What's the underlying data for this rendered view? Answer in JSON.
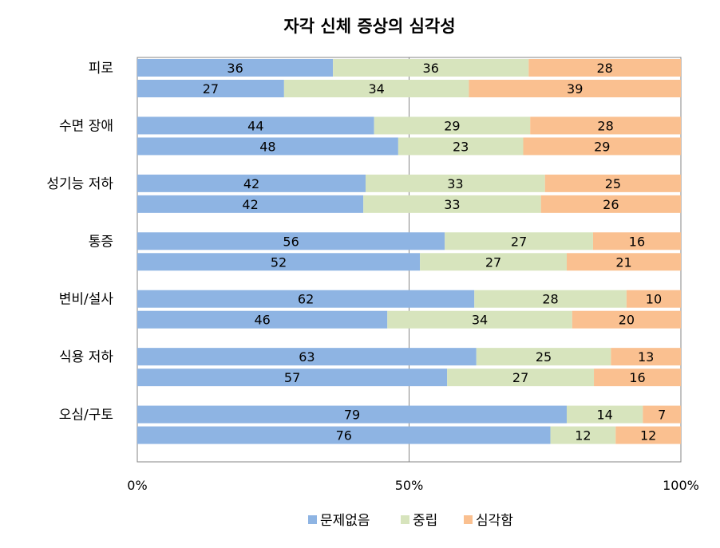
{
  "chart_data": {
    "type": "bar",
    "orientation": "horizontal",
    "stacked": "percent",
    "title": "자각 신체 증상의 심각성",
    "categories": [
      "피로",
      "수면 장애",
      "성기능 저하",
      "통증",
      "변비/설사",
      "식용 저하",
      "오심/구토"
    ],
    "bars_per_category": 2,
    "series": [
      {
        "name": "문제없음",
        "color": "#8eb4e3",
        "values": [
          [
            36,
            27
          ],
          [
            44,
            48
          ],
          [
            42,
            42
          ],
          [
            56,
            52
          ],
          [
            62,
            46
          ],
          [
            63,
            57
          ],
          [
            79,
            76
          ]
        ]
      },
      {
        "name": "중립",
        "color": "#d7e4bd",
        "values": [
          [
            36,
            34
          ],
          [
            29,
            23
          ],
          [
            33,
            33
          ],
          [
            27,
            27
          ],
          [
            28,
            34
          ],
          [
            25,
            27
          ],
          [
            14,
            12
          ]
        ]
      },
      {
        "name": "심각함",
        "color": "#fac090",
        "values": [
          [
            28,
            39
          ],
          [
            28,
            29
          ],
          [
            25,
            26
          ],
          [
            16,
            21
          ],
          [
            10,
            20
          ],
          [
            13,
            16
          ],
          [
            7,
            12
          ]
        ]
      }
    ],
    "x_ticks": [
      "0%",
      "50%",
      "100%"
    ],
    "xlim": [
      0,
      100
    ],
    "gridlines": "vertical at 50%",
    "legend_position": "bottom"
  }
}
